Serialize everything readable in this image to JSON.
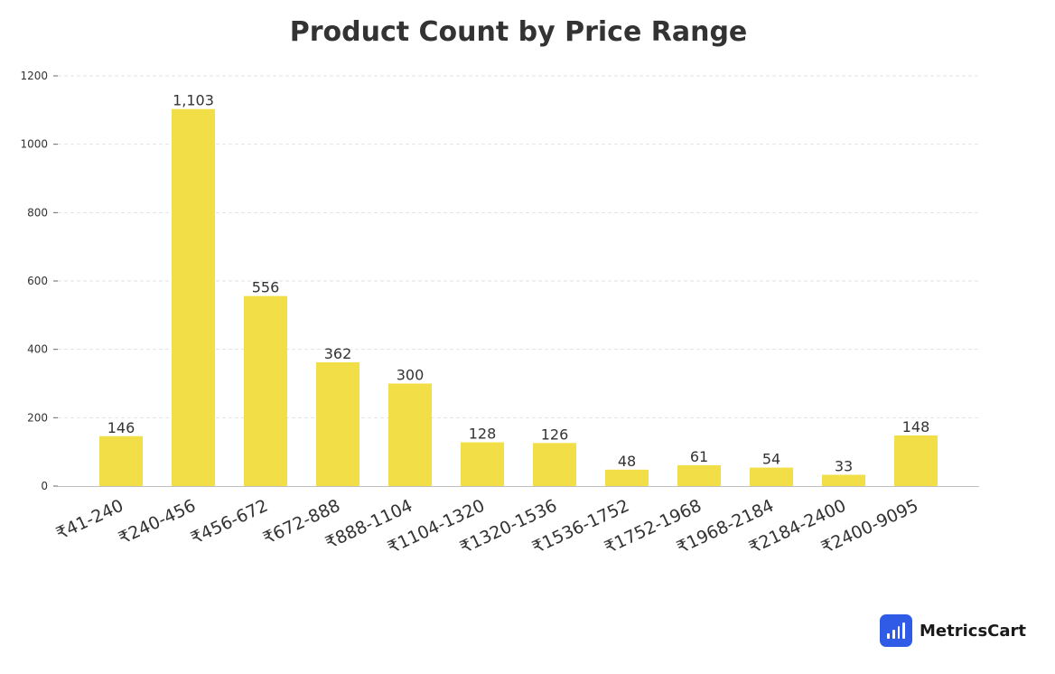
{
  "chart_data": {
    "type": "bar",
    "title": "Product Count by Price Range",
    "xlabel": "",
    "ylabel": "",
    "categories": [
      "₹41-240",
      "₹240-456",
      "₹456-672",
      "₹672-888",
      "₹888-1104",
      "₹1104-1320",
      "₹1320-1536",
      "₹1536-1752",
      "₹1752-1968",
      "₹1968-2184",
      "₹2184-2400",
      "₹2400-9095"
    ],
    "values": [
      146,
      1103,
      556,
      362,
      300,
      128,
      126,
      48,
      61,
      54,
      33,
      148
    ],
    "data_labels": [
      "146",
      "1,103",
      "556",
      "362",
      "300",
      "128",
      "126",
      "48",
      "61",
      "54",
      "33",
      "148"
    ],
    "yticks": [
      0,
      200,
      400,
      600,
      800,
      1000,
      1200
    ],
    "ylim": [
      0,
      1200
    ],
    "grid": true,
    "bar_color": "#f2de46"
  },
  "brand": {
    "name": "MetricsCart",
    "icon": "bar-chart-icon",
    "icon_color": "#2f5be7"
  }
}
